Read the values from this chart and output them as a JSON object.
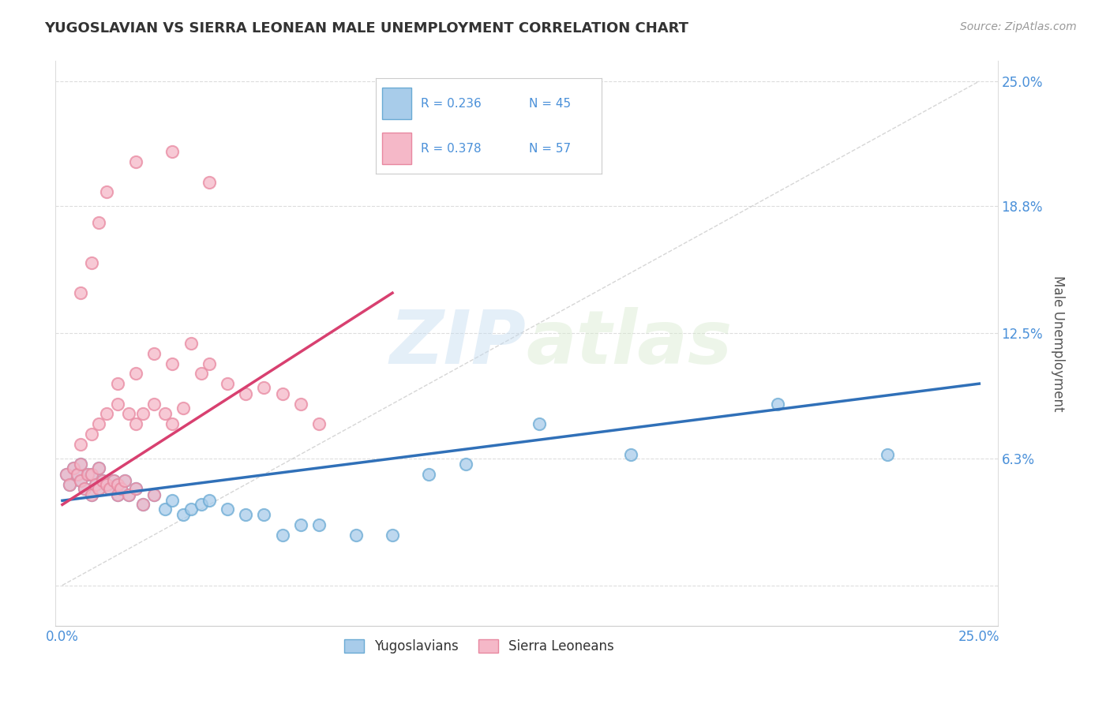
{
  "title": "YUGOSLAVIAN VS SIERRA LEONEAN MALE UNEMPLOYMENT CORRELATION CHART",
  "source": "Source: ZipAtlas.com",
  "ylabel": "Male Unemployment",
  "xlim": [
    -0.002,
    0.255
  ],
  "ylim": [
    -0.02,
    0.26
  ],
  "xtick_positions": [
    0.0,
    0.25
  ],
  "xticklabels": [
    "0.0%",
    "25.0%"
  ],
  "ytick_positions": [
    0.0,
    0.063,
    0.125,
    0.188,
    0.25
  ],
  "yticklabels": [
    "",
    "6.3%",
    "12.5%",
    "18.8%",
    "25.0%"
  ],
  "legend_r1": "R = 0.236",
  "legend_n1": "N = 45",
  "legend_r2": "R = 0.378",
  "legend_n2": "N = 57",
  "color_yugo_fill": "#A8CCEA",
  "color_yugo_edge": "#6AAAD4",
  "color_sierra_fill": "#F5B8C8",
  "color_sierra_edge": "#E888A0",
  "color_yugo_line": "#3070B8",
  "color_sierra_line": "#D84070",
  "color_text_blue": "#4A90D9",
  "color_diag": "#CCCCCC",
  "color_grid": "#DDDDDD",
  "background_color": "#FFFFFF",
  "watermark_zip": "ZIP",
  "watermark_atlas": "atlas",
  "yugo_x": [
    0.001,
    0.002,
    0.003,
    0.004,
    0.005,
    0.005,
    0.006,
    0.007,
    0.008,
    0.008,
    0.009,
    0.01,
    0.01,
    0.011,
    0.012,
    0.013,
    0.014,
    0.015,
    0.015,
    0.016,
    0.017,
    0.018,
    0.02,
    0.022,
    0.025,
    0.028,
    0.03,
    0.033,
    0.035,
    0.038,
    0.04,
    0.045,
    0.05,
    0.055,
    0.06,
    0.065,
    0.07,
    0.08,
    0.09,
    0.1,
    0.11,
    0.13,
    0.155,
    0.195,
    0.225
  ],
  "yugo_y": [
    0.055,
    0.05,
    0.058,
    0.055,
    0.052,
    0.06,
    0.048,
    0.055,
    0.045,
    0.055,
    0.05,
    0.048,
    0.058,
    0.052,
    0.05,
    0.048,
    0.052,
    0.045,
    0.05,
    0.048,
    0.052,
    0.045,
    0.048,
    0.04,
    0.045,
    0.038,
    0.042,
    0.035,
    0.038,
    0.04,
    0.042,
    0.038,
    0.035,
    0.035,
    0.025,
    0.03,
    0.03,
    0.025,
    0.025,
    0.055,
    0.06,
    0.08,
    0.065,
    0.09,
    0.065
  ],
  "sierra_x": [
    0.001,
    0.002,
    0.003,
    0.004,
    0.005,
    0.005,
    0.006,
    0.007,
    0.008,
    0.008,
    0.009,
    0.01,
    0.01,
    0.011,
    0.012,
    0.013,
    0.014,
    0.015,
    0.015,
    0.016,
    0.017,
    0.018,
    0.02,
    0.022,
    0.025,
    0.005,
    0.008,
    0.01,
    0.012,
    0.015,
    0.018,
    0.02,
    0.022,
    0.025,
    0.028,
    0.03,
    0.033,
    0.015,
    0.02,
    0.025,
    0.03,
    0.035,
    0.038,
    0.04,
    0.045,
    0.05,
    0.055,
    0.06,
    0.065,
    0.07,
    0.005,
    0.008,
    0.01,
    0.012,
    0.02,
    0.03,
    0.04
  ],
  "sierra_y": [
    0.055,
    0.05,
    0.058,
    0.055,
    0.052,
    0.06,
    0.048,
    0.055,
    0.045,
    0.055,
    0.05,
    0.048,
    0.058,
    0.052,
    0.05,
    0.048,
    0.052,
    0.045,
    0.05,
    0.048,
    0.052,
    0.045,
    0.048,
    0.04,
    0.045,
    0.07,
    0.075,
    0.08,
    0.085,
    0.09,
    0.085,
    0.08,
    0.085,
    0.09,
    0.085,
    0.08,
    0.088,
    0.1,
    0.105,
    0.115,
    0.11,
    0.12,
    0.105,
    0.11,
    0.1,
    0.095,
    0.098,
    0.095,
    0.09,
    0.08,
    0.145,
    0.16,
    0.18,
    0.195,
    0.21,
    0.215,
    0.2
  ]
}
